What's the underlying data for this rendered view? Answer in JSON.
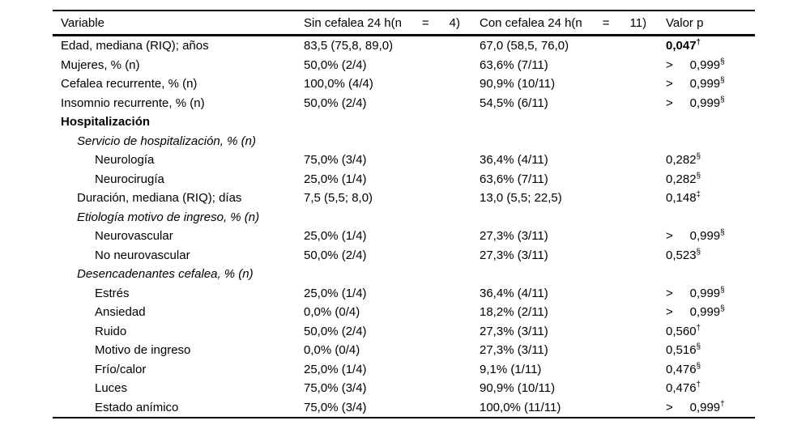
{
  "colors": {
    "background": "#ffffff",
    "text": "#000000",
    "rule": "#000000"
  },
  "table": {
    "header": {
      "variable": "Variable",
      "sin": "Sin cefalea 24 h(n      =      4)",
      "con": "Con cefalea 24 h(n      =      11)",
      "valor_p": "Valor p"
    },
    "rows": [
      {
        "label": "Edad, mediana (RIQ); años",
        "indent": 0,
        "style": "normal",
        "sin": "83,5 (75,8, 89,0)",
        "con": "67,0 (58,5, 76,0)",
        "p": "0,047",
        "p_sup": "†",
        "p_bold": true
      },
      {
        "label": "Mujeres, % (n)",
        "indent": 0,
        "style": "normal",
        "sin": "50,0% (2/4)",
        "con": "63,6% (7/11)",
        "p": ">     0,999",
        "p_sup": "§",
        "p_bold": false
      },
      {
        "label": "Cefalea recurrente, % (n)",
        "indent": 0,
        "style": "normal",
        "sin": "100,0% (4/4)",
        "con": "90,9% (10/11)",
        "p": ">     0,999",
        "p_sup": "§",
        "p_bold": false
      },
      {
        "label": "Insomnio recurrente, % (n)",
        "indent": 0,
        "style": "normal",
        "sin": "50,0% (2/4)",
        "con": "54,5% (6/11)",
        "p": ">     0,999",
        "p_sup": "§",
        "p_bold": false
      },
      {
        "label": "Hospitalización",
        "indent": 0,
        "style": "bold",
        "sin": "",
        "con": "",
        "p": "",
        "p_sup": "",
        "p_bold": false
      },
      {
        "label": "Servicio de hospitalización, % (n)",
        "indent": 1,
        "style": "italic",
        "sin": "",
        "con": "",
        "p": "",
        "p_sup": "",
        "p_bold": false
      },
      {
        "label": "Neurología",
        "indent": 2,
        "style": "normal",
        "sin": "75,0% (3/4)",
        "con": "36,4% (4/11)",
        "p": "0,282",
        "p_sup": "§",
        "p_bold": false
      },
      {
        "label": "Neurocirugía",
        "indent": 2,
        "style": "normal",
        "sin": "25,0% (1/4)",
        "con": "63,6% (7/11)",
        "p": "0,282",
        "p_sup": "§",
        "p_bold": false
      },
      {
        "label": "Duración, mediana (RIQ); días",
        "indent": 1,
        "style": "normal",
        "sin": "7,5 (5,5; 8,0)",
        "con": "13,0 (5,5; 22,5)",
        "p": "0,148",
        "p_sup": "‡",
        "p_bold": false
      },
      {
        "label": "Etiología motivo de ingreso, % (n)",
        "indent": 1,
        "style": "italic",
        "sin": "",
        "con": "",
        "p": "",
        "p_sup": "",
        "p_bold": false
      },
      {
        "label": "Neurovascular",
        "indent": 2,
        "style": "normal",
        "sin": "25,0% (1/4)",
        "con": "27,3% (3/11)",
        "p": ">     0,999",
        "p_sup": "§",
        "p_bold": false
      },
      {
        "label": "No neurovascular",
        "indent": 2,
        "style": "normal",
        "sin": "50,0% (2/4)",
        "con": "27,3% (3/11)",
        "p": "0,523",
        "p_sup": "§",
        "p_bold": false
      },
      {
        "label": "Desencadenantes cefalea, % (n)",
        "indent": 1,
        "style": "italic",
        "sin": "",
        "con": "",
        "p": "",
        "p_sup": "",
        "p_bold": false
      },
      {
        "label": "Estrés",
        "indent": 2,
        "style": "normal",
        "sin": "25,0% (1/4)",
        "con": "36,4% (4/11)",
        "p": ">     0,999",
        "p_sup": "§",
        "p_bold": false
      },
      {
        "label": "Ansiedad",
        "indent": 2,
        "style": "normal",
        "sin": "0,0% (0/4)",
        "con": "18,2% (2/11)",
        "p": ">     0,999",
        "p_sup": "§",
        "p_bold": false
      },
      {
        "label": "Ruido",
        "indent": 2,
        "style": "normal",
        "sin": "50,0% (2/4)",
        "con": "27,3% (3/11)",
        "p": "0,560",
        "p_sup": "†",
        "p_bold": false
      },
      {
        "label": "Motivo de ingreso",
        "indent": 2,
        "style": "normal",
        "sin": "0,0% (0/4)",
        "con": "27,3% (3/11)",
        "p": "0,516",
        "p_sup": "§",
        "p_bold": false
      },
      {
        "label": "Frío/calor",
        "indent": 2,
        "style": "normal",
        "sin": "25,0% (1/4)",
        "con": "9,1% (1/11)",
        "p": "0,476",
        "p_sup": "§",
        "p_bold": false
      },
      {
        "label": "Luces",
        "indent": 2,
        "style": "normal",
        "sin": "75,0% (3/4)",
        "con": "90,9% (10/11)",
        "p": "0,476",
        "p_sup": "†",
        "p_bold": false
      },
      {
        "label": "Estado anímico",
        "indent": 2,
        "style": "normal",
        "sin": "75,0% (3/4)",
        "con": "100,0% (11/11)",
        "p": ">     0,999",
        "p_sup": "†",
        "p_bold": false
      }
    ]
  }
}
